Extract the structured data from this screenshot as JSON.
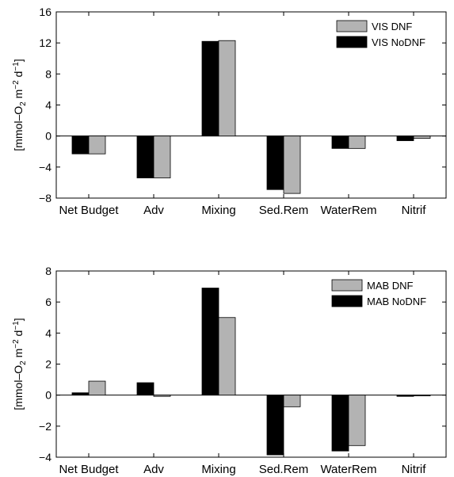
{
  "colors": {
    "nodnf": "#000000",
    "dnf": "#b3b3b3",
    "axis": "#000000",
    "background": "#ffffff"
  },
  "chart_data": [
    {
      "type": "bar",
      "categories": [
        "Net Budget",
        "Adv",
        "Mixing",
        "Sed.Rem",
        "WaterRem",
        "Nitrif"
      ],
      "ylabel_parts": {
        "pre": "[mmol–O",
        "sub1": "2",
        "mid": " m",
        "sup1": "−2",
        "mid2": " d",
        "sup2": "−1",
        "post": "]"
      },
      "ylim": [
        -8,
        16
      ],
      "yticks": [
        "−8",
        "−4",
        "0",
        "4",
        "8",
        "12",
        "16"
      ],
      "ytick_values": [
        -8,
        -4,
        0,
        4,
        8,
        12,
        16
      ],
      "legend": "top-right",
      "grid": false,
      "series": [
        {
          "name": "VIS NoDNF",
          "values": [
            -2.3,
            -5.4,
            12.2,
            -6.9,
            -1.6,
            -0.6
          ]
        },
        {
          "name": "VIS DNF",
          "values": [
            -2.3,
            -5.4,
            12.3,
            -7.4,
            -1.6,
            -0.3
          ]
        }
      ],
      "legend_order": [
        1,
        0
      ]
    },
    {
      "type": "bar",
      "categories": [
        "Net Budget",
        "Adv",
        "Mixing",
        "Sed.Rem",
        "WaterRem",
        "Nitrif"
      ],
      "ylabel_parts": {
        "pre": "[mmol–O",
        "sub1": "2",
        "mid": " m",
        "sup1": "−2",
        "mid2": " d",
        "sup2": "−1",
        "post": "]"
      },
      "ylim": [
        -4,
        8
      ],
      "yticks": [
        "−4",
        "−2",
        "0",
        "2",
        "4",
        "6",
        "8"
      ],
      "ytick_values": [
        -4,
        -2,
        0,
        2,
        4,
        6,
        8
      ],
      "legend": "top-right",
      "grid": false,
      "series": [
        {
          "name": "MAB NoDNF",
          "values": [
            0.15,
            0.8,
            6.9,
            -3.85,
            -3.6,
            -0.08
          ]
        },
        {
          "name": "MAB DNF",
          "values": [
            0.9,
            -0.08,
            5.0,
            -0.75,
            -3.25,
            -0.05
          ]
        }
      ],
      "legend_order": [
        1,
        0
      ]
    }
  ]
}
